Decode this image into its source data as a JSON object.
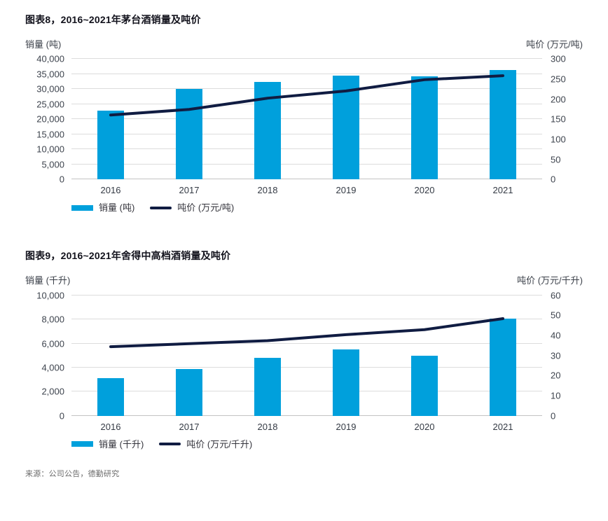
{
  "source_note": "来源：公司公告，德勤研究",
  "chart_data": [
    {
      "type": "bar+line",
      "title": "图表8，2016~2021年茅台酒销量及吨价",
      "categories": [
        "2016",
        "2017",
        "2018",
        "2019",
        "2020",
        "2021"
      ],
      "series": [
        {
          "name": "销量 (吨)",
          "type": "bar",
          "axis": "left",
          "color": "#00A0DC",
          "values": [
            23000,
            30200,
            32500,
            34600,
            34300,
            36300
          ]
        },
        {
          "name": "吨价 (万元/吨)",
          "type": "line",
          "axis": "right",
          "color": "#101C42",
          "values": [
            160,
            174,
            202,
            220,
            248,
            258
          ]
        }
      ],
      "left_axis": {
        "label": "销量 (吨)",
        "min": 0,
        "max": 40000,
        "step": 5000,
        "tick_labels": [
          "0",
          "5,000",
          "10,000",
          "15,000",
          "20,000",
          "25,000",
          "30,000",
          "35,000",
          "40,000"
        ]
      },
      "right_axis": {
        "label": "吨价 (万元/吨)",
        "min": 0,
        "max": 300,
        "step": 50,
        "tick_labels": [
          "0",
          "50",
          "100",
          "150",
          "200",
          "250",
          "300"
        ]
      },
      "grid": "horizontal gridlines at left-axis steps",
      "legend_position": "bottom-left"
    },
    {
      "type": "bar+line",
      "title": "图表9，2016~2021年舍得中高档酒销量及吨价",
      "categories": [
        "2016",
        "2017",
        "2018",
        "2019",
        "2020",
        "2021"
      ],
      "series": [
        {
          "name": "销量 (千升)",
          "type": "bar",
          "axis": "left",
          "color": "#00A0DC",
          "values": [
            3100,
            3900,
            4800,
            5500,
            5000,
            8050
          ]
        },
        {
          "name": "吨价 (万元/千升)",
          "type": "line",
          "axis": "right",
          "color": "#101C42",
          "values": [
            34.5,
            36,
            37.5,
            40.5,
            43,
            48.5
          ]
        }
      ],
      "left_axis": {
        "label": "销量 (千升)",
        "min": 0,
        "max": 10000,
        "step": 2000,
        "tick_labels": [
          "0",
          "2,000",
          "4,000",
          "6,000",
          "8,000",
          "10,000"
        ]
      },
      "right_axis": {
        "label": "吨价 (万元/千升)",
        "min": 0,
        "max": 60,
        "step": 10,
        "tick_labels": [
          "0",
          "10",
          "20",
          "30",
          "40",
          "50",
          "60"
        ]
      },
      "grid": "horizontal gridlines at left-axis steps",
      "legend_position": "bottom-left"
    }
  ]
}
